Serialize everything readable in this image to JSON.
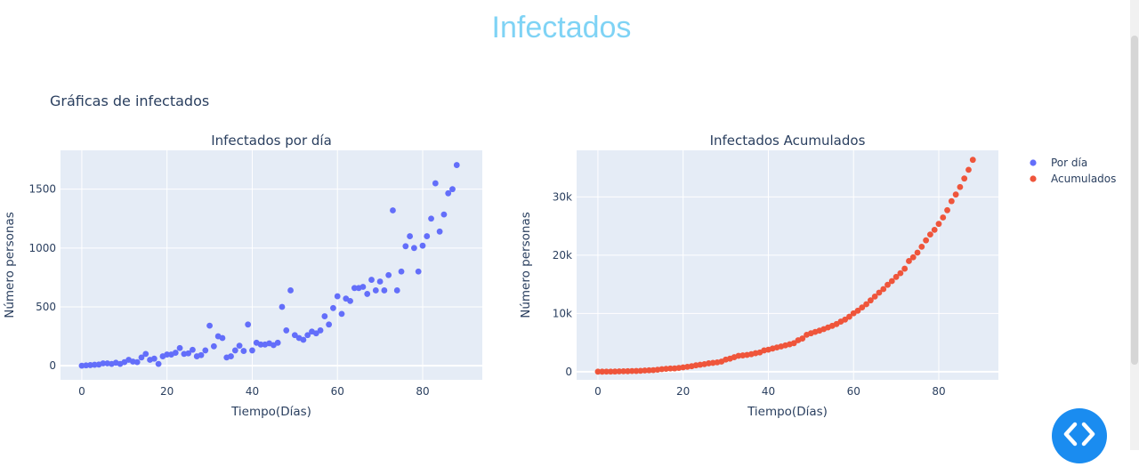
{
  "page": {
    "title": "Infectados",
    "subtitle": "Gráficas de infectados"
  },
  "colors": {
    "title": "#7fd3f5",
    "series_por_dia": "#636efa",
    "series_acumulados": "#ef553b",
    "plot_bg": "#e5ecf6",
    "text": "#2a3f5f",
    "fab": "#1a8cf0"
  },
  "legend": {
    "items": [
      {
        "label": "Por día",
        "color": "#636efa"
      },
      {
        "label": "Acumulados",
        "color": "#ef553b"
      }
    ],
    "placement": "top-right"
  },
  "code_toggle": {
    "icon": "code-brackets-icon"
  },
  "chart_data": [
    {
      "type": "scatter",
      "title": "Infectados por día",
      "xlabel": "Tiempo(Días)",
      "ylabel": "Número personas",
      "xlim": [
        -5,
        94
      ],
      "ylim": [
        -120,
        1830
      ],
      "xticks": [
        0,
        20,
        40,
        60,
        80
      ],
      "yticks": [
        0,
        500,
        1000,
        1500
      ],
      "ytick_labels": [
        "0",
        "500",
        "1000",
        "1500"
      ],
      "grid": true,
      "series": [
        {
          "name": "Por día",
          "color": "#636efa",
          "x": [
            0,
            1,
            2,
            3,
            4,
            5,
            6,
            7,
            8,
            9,
            10,
            11,
            12,
            13,
            14,
            15,
            16,
            17,
            18,
            19,
            20,
            21,
            22,
            23,
            24,
            25,
            26,
            27,
            28,
            29,
            30,
            31,
            32,
            33,
            34,
            35,
            36,
            37,
            38,
            39,
            40,
            41,
            42,
            43,
            44,
            45,
            46,
            47,
            48,
            49,
            50,
            51,
            52,
            53,
            54,
            55,
            56,
            57,
            58,
            59,
            60,
            61,
            62,
            63,
            64,
            65,
            66,
            67,
            68,
            69,
            70,
            71,
            72,
            73,
            74,
            75,
            76,
            77,
            78,
            79,
            80,
            81,
            82,
            83,
            84,
            85,
            86,
            87,
            88
          ],
          "y": [
            0,
            3,
            5,
            8,
            10,
            20,
            20,
            15,
            25,
            15,
            30,
            50,
            35,
            30,
            70,
            100,
            50,
            60,
            15,
            80,
            95,
            95,
            110,
            150,
            100,
            105,
            135,
            80,
            90,
            130,
            340,
            165,
            250,
            235,
            70,
            80,
            130,
            170,
            125,
            350,
            130,
            195,
            180,
            180,
            190,
            175,
            195,
            500,
            300,
            640,
            260,
            235,
            220,
            260,
            290,
            275,
            300,
            420,
            350,
            490,
            590,
            440,
            570,
            550,
            660,
            660,
            670,
            610,
            730,
            640,
            715,
            640,
            770,
            1320,
            640,
            800,
            1015,
            1100,
            1000,
            800,
            1020,
            1100,
            1250,
            1550,
            1140,
            1285,
            1465,
            1500,
            1705
          ]
        }
      ]
    },
    {
      "type": "scatter",
      "title": "Infectados Acumulados",
      "xlabel": "Tiempo(Días)",
      "ylabel": "Número personas",
      "xlim": [
        -5,
        94
      ],
      "ylim": [
        -1400,
        38000
      ],
      "xticks": [
        0,
        20,
        40,
        60,
        80
      ],
      "yticks": [
        0,
        10000,
        20000,
        30000
      ],
      "ytick_labels": [
        "0",
        "10k",
        "20k",
        "30k"
      ],
      "grid": true,
      "series": [
        {
          "name": "Acumulados",
          "color": "#ef553b",
          "x": [
            0,
            1,
            2,
            3,
            4,
            5,
            6,
            7,
            8,
            9,
            10,
            11,
            12,
            13,
            14,
            15,
            16,
            17,
            18,
            19,
            20,
            21,
            22,
            23,
            24,
            25,
            26,
            27,
            28,
            29,
            30,
            31,
            32,
            33,
            34,
            35,
            36,
            37,
            38,
            39,
            40,
            41,
            42,
            43,
            44,
            45,
            46,
            47,
            48,
            49,
            50,
            51,
            52,
            53,
            54,
            55,
            56,
            57,
            58,
            59,
            60,
            61,
            62,
            63,
            64,
            65,
            66,
            67,
            68,
            69,
            70,
            71,
            72,
            73,
            74,
            75,
            76,
            77,
            78,
            79,
            80,
            81,
            82,
            83,
            84,
            85,
            86,
            87,
            88
          ],
          "y": [
            0,
            3,
            8,
            16,
            26,
            46,
            66,
            81,
            106,
            121,
            151,
            201,
            236,
            266,
            336,
            436,
            486,
            546,
            561,
            641,
            736,
            831,
            941,
            1091,
            1191,
            1296,
            1431,
            1511,
            1601,
            1731,
            2071,
            2236,
            2486,
            2721,
            2791,
            2871,
            3001,
            3171,
            3296,
            3646,
            3776,
            3971,
            4151,
            4331,
            4521,
            4696,
            4891,
            5391,
            5691,
            6331,
            6591,
            6826,
            7046,
            7306,
            7596,
            7871,
            8171,
            8591,
            8941,
            9431,
            10021,
            10461,
            11031,
            11581,
            12241,
            12901,
            13571,
            14181,
            14911,
            15551,
            16266,
            16906,
            17676,
            18996,
            19636,
            20436,
            21451,
            22551,
            23551,
            24351,
            25371,
            26471,
            27721,
            29271,
            30411,
            31696,
            33161,
            34661,
            36366
          ]
        }
      ]
    }
  ]
}
